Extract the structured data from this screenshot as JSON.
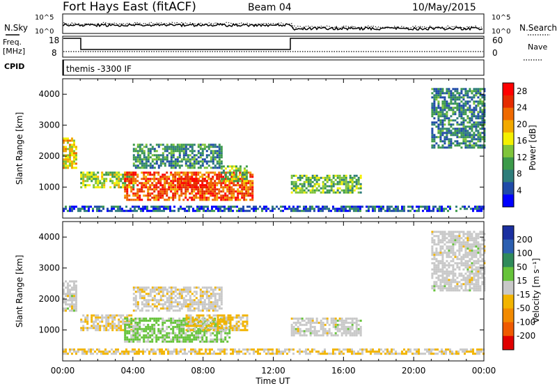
{
  "header": {
    "station": "Fort Hays East (fitACF)",
    "beam": "Beam 04",
    "date": "10/May/2015"
  },
  "aux_panels": {
    "noise": {
      "label": "N.Sky",
      "right_label": "N.Search",
      "left_ticks": [
        "10^5",
        "10^0"
      ],
      "right_ticks": [
        "10^5",
        "10^0"
      ]
    },
    "freq": {
      "label_line1": "Freq.",
      "label_line2": "[MHz]",
      "right_label": "Nave",
      "left_ticks": [
        "18",
        "8"
      ],
      "right_ticks": [
        "60",
        "0"
      ]
    },
    "cpid": {
      "label": "CPID",
      "program": "themis -3300 IF"
    }
  },
  "x_axis": {
    "label": "Time UT",
    "ticks": [
      "00:00",
      "04:00",
      "08:00",
      "12:00",
      "16:00",
      "20:00",
      "00:00"
    ]
  },
  "colors": {
    "power_scale": [
      "#0000ff",
      "#1f4aa8",
      "#2e7d7a",
      "#3c9a4a",
      "#7fc43a",
      "#f4f000",
      "#f2a900",
      "#ef6a00",
      "#e52b00",
      "#ff0000"
    ],
    "velocity_scale": [
      "#1a2fa0",
      "#2c5fb0",
      "#2f8a5a",
      "#66c33a",
      "#c8c8c8",
      "#f2b400",
      "#f28a00",
      "#ef5a00",
      "#e00000"
    ]
  },
  "chart_data": [
    {
      "type": "heatmap",
      "panel": "power",
      "ylabel": "Slant Range [km]",
      "yticks": [
        "1000",
        "2000",
        "3000",
        "4000"
      ],
      "ylim": [
        0,
        4500
      ],
      "xlim": [
        0,
        24
      ],
      "colorbar_label": "Power [dB]",
      "colorbar_ticks": [
        "4",
        "8",
        "12",
        "16",
        "20",
        "24",
        "28"
      ],
      "colorbar_range": [
        0,
        30
      ],
      "regions": [
        {
          "t": [
            0.0,
            0.8
          ],
          "r": [
            1600,
            2600
          ],
          "value": 17
        },
        {
          "t": [
            1.0,
            4.0
          ],
          "r": [
            1000,
            1500
          ],
          "value": 14
        },
        {
          "t": [
            4.0,
            9.0
          ],
          "r": [
            1600,
            2400
          ],
          "value": 9
        },
        {
          "t": [
            3.5,
            10.8
          ],
          "r": [
            600,
            1500
          ],
          "value": 24
        },
        {
          "t": [
            6.5,
            8.5
          ],
          "r": [
            1000,
            1300
          ],
          "value": 27
        },
        {
          "t": [
            9.0,
            10.5
          ],
          "r": [
            1200,
            1700
          ],
          "value": 13
        },
        {
          "t": [
            13.0,
            17.0
          ],
          "r": [
            800,
            1400
          ],
          "value": 12
        },
        {
          "t": [
            21.0,
            24.0
          ],
          "r": [
            2300,
            4200
          ],
          "value": 8
        },
        {
          "t": [
            0.0,
            24.0
          ],
          "r": [
            200,
            400
          ],
          "value": 5
        }
      ]
    },
    {
      "type": "heatmap",
      "panel": "velocity",
      "ylabel": "Slant Range [km]",
      "yticks": [
        "1000",
        "2000",
        "3000",
        "4000"
      ],
      "ylim": [
        0,
        4500
      ],
      "xlim": [
        0,
        24
      ],
      "colorbar_label": "Velocity [m s⁻¹]",
      "colorbar_ticks": [
        "200",
        "100",
        "50",
        "15",
        "-15",
        "-50",
        "-100",
        "-200"
      ],
      "colorbar_range": [
        -250,
        250
      ],
      "regions": [
        {
          "t": [
            0.0,
            0.8
          ],
          "r": [
            1600,
            2600
          ],
          "value": 0
        },
        {
          "t": [
            1.0,
            4.0
          ],
          "r": [
            1000,
            1500
          ],
          "value": -20
        },
        {
          "t": [
            4.0,
            9.0
          ],
          "r": [
            1600,
            2400
          ],
          "value": -10
        },
        {
          "t": [
            3.5,
            9.5
          ],
          "r": [
            600,
            1400
          ],
          "value": 40
        },
        {
          "t": [
            7.0,
            10.5
          ],
          "r": [
            1000,
            1500
          ],
          "value": -40
        },
        {
          "t": [
            13.0,
            17.0
          ],
          "r": [
            800,
            1400
          ],
          "value": 0
        },
        {
          "t": [
            21.0,
            24.0
          ],
          "r": [
            2300,
            4200
          ],
          "value": 0
        },
        {
          "t": [
            0.0,
            24.0
          ],
          "r": [
            200,
            400
          ],
          "value": -30
        }
      ]
    }
  ]
}
